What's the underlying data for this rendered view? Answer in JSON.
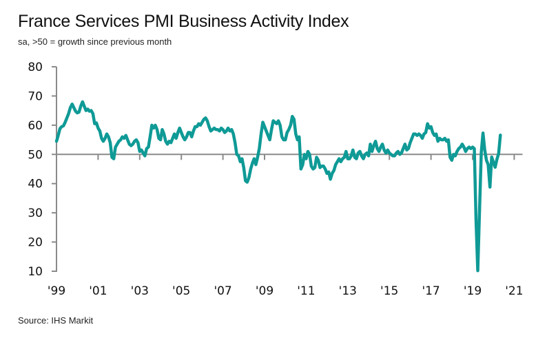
{
  "chart_data": {
    "type": "line",
    "title": "France Services PMI Business Activity Index",
    "subtitle": "sa, >50 = growth since previous month",
    "source": "Source: IHS Markit",
    "xlabel": "",
    "ylabel": "",
    "ylim": [
      10,
      80
    ],
    "yticks": [
      80,
      70,
      60,
      50,
      40,
      30,
      20,
      10
    ],
    "xlim": [
      1999.0,
      2021.4
    ],
    "xticks": [
      {
        "year": 1999,
        "label": "'99"
      },
      {
        "year": 2001,
        "label": "'01"
      },
      {
        "year": 2003,
        "label": "'03"
      },
      {
        "year": 2005,
        "label": "'05"
      },
      {
        "year": 2007,
        "label": "'07"
      },
      {
        "year": 2009,
        "label": "'09"
      },
      {
        "year": 2011,
        "label": "'11"
      },
      {
        "year": 2013,
        "label": "'13"
      },
      {
        "year": 2015,
        "label": "'15"
      },
      {
        "year": 2017,
        "label": "'17"
      },
      {
        "year": 2019,
        "label": "'19"
      },
      {
        "year": 2021,
        "label": "'21"
      }
    ],
    "reference_line": 50,
    "grid": false,
    "legend": "none",
    "series": [
      {
        "name": "France Services PMI Business Activity Index",
        "color": "#0f9a96",
        "start": "1999-01",
        "frequency": "monthly",
        "values": [
          54.5,
          56.5,
          58.8,
          59.5,
          59.8,
          61.0,
          62.5,
          64.0,
          66.0,
          67.2,
          66.0,
          64.8,
          64.2,
          64.5,
          66.5,
          68.0,
          66.5,
          65.0,
          65.5,
          64.8,
          65.0,
          64.0,
          60.5,
          60.8,
          59.0,
          58.0,
          55.5,
          54.5,
          55.5,
          57.0,
          56.0,
          54.0,
          49.0,
          48.5,
          52.5,
          53.5,
          54.5,
          55.0,
          56.0,
          55.5,
          56.5,
          55.0,
          53.5,
          53.0,
          53.5,
          54.5,
          55.0,
          54.0,
          51.0,
          51.5,
          50.5,
          49.5,
          52.0,
          52.5,
          56.0,
          60.0,
          59.0,
          60.0,
          58.5,
          55.5,
          55.0,
          58.5,
          57.0,
          54.5,
          53.5,
          54.5,
          54.0,
          55.5,
          57.0,
          55.5,
          57.5,
          59.0,
          57.5,
          56.0,
          55.0,
          56.0,
          57.5,
          57.5,
          56.0,
          58.0,
          59.5,
          59.5,
          60.5,
          60.0,
          61.0,
          62.0,
          62.5,
          61.5,
          59.5,
          58.0,
          58.5,
          59.0,
          58.5,
          58.5,
          58.0,
          59.0,
          58.5,
          57.5,
          58.0,
          59.0,
          58.0,
          58.5,
          57.0,
          54.0,
          50.0,
          49.5,
          47.5,
          48.5,
          45.5,
          41.0,
          40.5,
          42.0,
          45.0,
          47.0,
          48.5,
          46.5,
          49.0,
          52.0,
          57.0,
          61.0,
          59.5,
          58.0,
          56.5,
          55.0,
          58.5,
          61.5,
          61.0,
          60.5,
          61.5,
          60.0,
          56.0,
          55.0,
          55.0,
          57.5,
          58.5,
          60.0,
          63.0,
          62.0,
          57.0,
          55.0,
          56.0,
          45.0,
          46.5,
          50.0,
          48.5,
          51.0,
          50.0,
          46.0,
          45.0,
          45.5,
          49.0,
          48.0,
          45.5,
          46.0,
          46.0,
          45.0,
          43.5,
          44.0,
          41.5,
          43.5,
          44.5,
          46.5,
          47.5,
          48.5,
          47.5,
          48.5,
          49.0,
          51.0,
          48.5,
          48.5,
          49.5,
          51.5,
          49.0,
          48.5,
          50.5,
          51.0,
          49.5,
          48.5,
          50.0,
          50.5,
          49.5,
          53.5,
          51.0,
          53.0,
          54.5,
          52.0,
          51.0,
          52.5,
          53.5,
          51.5,
          50.5,
          51.5,
          50.5,
          50.0,
          49.5,
          49.5,
          50.5,
          51.0,
          50.0,
          50.5,
          52.0,
          53.5,
          51.5,
          52.0,
          54.0,
          55.5,
          57.0,
          57.0,
          56.5,
          57.0,
          56.5,
          55.5,
          57.0,
          57.5,
          60.5,
          59.0,
          59.5,
          57.5,
          56.5,
          57.0,
          54.5,
          55.5,
          55.0,
          55.0,
          55.5,
          54.5,
          55.0,
          49.0,
          48.0,
          50.0,
          49.5,
          51.0,
          52.0,
          52.5,
          53.5,
          52.5,
          51.0,
          52.0,
          52.5,
          52.0,
          52.5,
          52.0,
          27.4,
          10.2,
          31.1,
          50.7,
          57.3,
          51.5,
          48.0,
          46.5,
          38.8,
          49.1,
          47.3,
          45.6,
          48.2,
          50.3,
          56.6
        ]
      }
    ]
  }
}
